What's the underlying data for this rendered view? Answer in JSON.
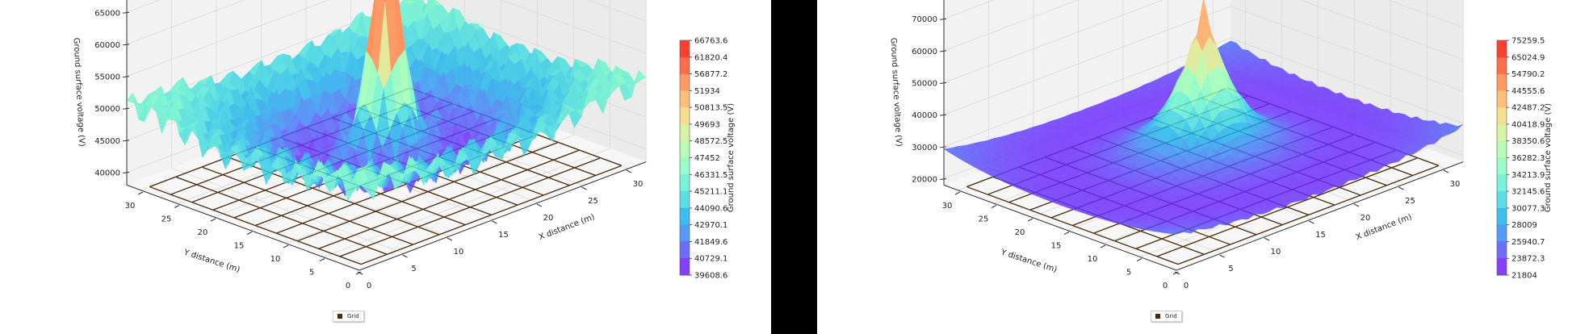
{
  "chart_data": [
    {
      "type": "surface3d",
      "title": "",
      "xlabel": "X distance (m)",
      "ylabel": "Y distance (m)",
      "zlabel": "Ground surface voltage (V)",
      "x_ticks": [
        "0",
        "5",
        "10",
        "15",
        "20",
        "25",
        "30"
      ],
      "y_ticks": [
        "0",
        "5",
        "10",
        "15",
        "20",
        "25",
        "30"
      ],
      "z_ticks": [
        "40000",
        "45000",
        "50000",
        "55000",
        "60000",
        "65000"
      ],
      "xlim": [
        0,
        32
      ],
      "ylim": [
        0,
        32
      ],
      "zlim": [
        38000,
        67000
      ],
      "colormap": "rainbow",
      "colorbar_label": "Ground surface voltage (V)",
      "colorbar_ticks": [
        "66763.6",
        "61820.4",
        "56877.2",
        "51934",
        "50813.5",
        "49693",
        "48572.5",
        "47452",
        "46331.5",
        "45211.1",
        "44090.6",
        "42970.1",
        "41849.6",
        "40729.1",
        "39608.6"
      ],
      "z_min": 39608.6,
      "z_max": 66763.6,
      "peak": {
        "x": 16,
        "y": 16,
        "value": 66763.6
      },
      "description": "Rippled surface with sharp central spike (~66.8 kV), secondary peaks ~52-55 kV at grid edges, troughs ~40-42 kV between",
      "legend": [
        "Grid"
      ],
      "grid_overlay": {
        "spacing_m": 2.9,
        "extent_m": [
          0,
          30
        ],
        "color": "#4a2a0a"
      }
    },
    {
      "type": "surface3d",
      "title": "",
      "xlabel": "X distance (m)",
      "ylabel": "Y distance (m)",
      "zlabel": "Ground surface voltage (V)",
      "x_ticks": [
        "0",
        "5",
        "10",
        "15",
        "20",
        "25",
        "30"
      ],
      "y_ticks": [
        "0",
        "5",
        "10",
        "15",
        "20",
        "25",
        "30"
      ],
      "z_ticks": [
        "20000",
        "30000",
        "40000",
        "50000",
        "60000",
        "70000"
      ],
      "xlim": [
        0,
        32
      ],
      "ylim": [
        0,
        32
      ],
      "zlim": [
        18000,
        76000
      ],
      "colormap": "rainbow",
      "colorbar_label": "Ground surface voltage (V)",
      "colorbar_ticks": [
        "75259.5",
        "65024.9",
        "54790.2",
        "44555.6",
        "42487.2",
        "40418.9",
        "38350.6",
        "36282.3",
        "34213.9",
        "32145.6",
        "30077.3",
        "28009",
        "25940.7",
        "23872.3",
        "21804"
      ],
      "z_min": 21804,
      "z_max": 75259.5,
      "peak": {
        "x": 16,
        "y": 16,
        "value": 75259.5
      },
      "description": "Smooth cone-shaped peak (~75.3 kV) at center decaying to ~22-26 kV plateau at edges",
      "legend": [
        "Grid"
      ],
      "grid_overlay": {
        "spacing_m": 2.9,
        "extent_m": [
          0,
          30
        ],
        "color": "#4a2a0a"
      }
    }
  ],
  "panels": [
    {
      "legend_label": "Grid",
      "colorbar_label": "Ground surface voltage (V)"
    },
    {
      "legend_label": "Grid",
      "colorbar_label": "Ground surface voltage (V)"
    }
  ]
}
